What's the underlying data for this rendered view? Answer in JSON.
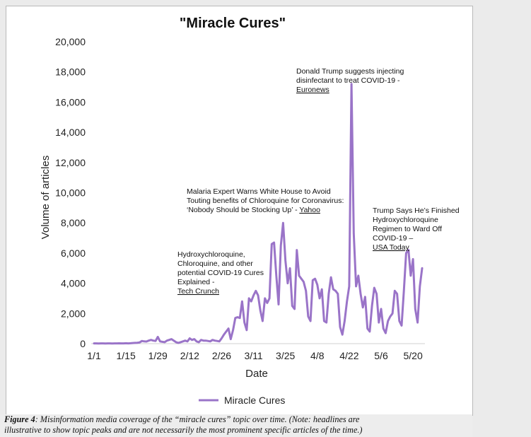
{
  "chart_data": {
    "type": "line",
    "title": "\"Miracle Cures\"",
    "xlabel": "Date",
    "ylabel": "Volume of articles",
    "ylim": [
      0,
      20000
    ],
    "yticks": [
      0,
      2000,
      4000,
      6000,
      8000,
      10000,
      12000,
      14000,
      16000,
      18000,
      20000
    ],
    "ytick_labels": [
      "0",
      "2,000",
      "4,000",
      "6,000",
      "8,000",
      "10,000",
      "12,000",
      "14,000",
      "16,000",
      "18,000",
      "20,000"
    ],
    "xticks": [
      {
        "day": 0,
        "label": "1/1"
      },
      {
        "day": 14,
        "label": "1/15"
      },
      {
        "day": 28,
        "label": "1/29"
      },
      {
        "day": 42,
        "label": "2/12"
      },
      {
        "day": 56,
        "label": "2/26"
      },
      {
        "day": 70,
        "label": "3/11"
      },
      {
        "day": 84,
        "label": "3/25"
      },
      {
        "day": 98,
        "label": "4/8"
      },
      {
        "day": 112,
        "label": "4/22"
      },
      {
        "day": 126,
        "label": "5/6"
      },
      {
        "day": 140,
        "label": "5/20"
      }
    ],
    "grid": false,
    "legend_position": "bottom",
    "color": "#9a74c8",
    "series": [
      {
        "name": "Miracle Cures",
        "x": [
          0,
          1,
          2,
          3,
          4,
          5,
          6,
          7,
          8,
          9,
          10,
          11,
          12,
          13,
          14,
          15,
          16,
          17,
          18,
          19,
          20,
          21,
          22,
          23,
          24,
          25,
          26,
          27,
          28,
          29,
          30,
          31,
          32,
          33,
          34,
          35,
          36,
          37,
          38,
          39,
          40,
          41,
          42,
          43,
          44,
          45,
          46,
          47,
          48,
          49,
          50,
          51,
          52,
          53,
          54,
          55,
          56,
          57,
          58,
          59,
          60,
          61,
          62,
          63,
          64,
          65,
          66,
          67,
          68,
          69,
          70,
          71,
          72,
          73,
          74,
          75,
          76,
          77,
          78,
          79,
          80,
          81,
          82,
          83,
          84,
          85,
          86,
          87,
          88,
          89,
          90,
          91,
          92,
          93,
          94,
          95,
          96,
          97,
          98,
          99,
          100,
          101,
          102,
          103,
          104,
          105,
          106,
          107,
          108,
          109,
          110,
          111,
          112,
          113,
          114,
          115,
          116,
          117,
          118,
          119,
          120,
          121,
          122,
          123,
          124,
          125,
          126,
          127,
          128,
          129,
          130,
          131,
          132,
          133,
          134,
          135,
          136,
          137,
          138,
          139,
          140,
          141,
          142,
          143,
          144
        ],
        "y": [
          20,
          20,
          15,
          20,
          20,
          15,
          20,
          20,
          15,
          20,
          20,
          25,
          20,
          20,
          30,
          20,
          30,
          40,
          50,
          60,
          80,
          180,
          150,
          140,
          200,
          250,
          200,
          180,
          450,
          150,
          120,
          100,
          200,
          250,
          300,
          200,
          100,
          50,
          100,
          150,
          200,
          150,
          350,
          250,
          300,
          150,
          100,
          250,
          200,
          200,
          180,
          150,
          250,
          200,
          180,
          150,
          350,
          600,
          800,
          1000,
          300,
          900,
          1700,
          1750,
          1700,
          2800,
          1400,
          900,
          3000,
          2800,
          3200,
          3500,
          3200,
          2200,
          1500,
          3000,
          2700,
          3000,
          6600,
          6700,
          4500,
          2600,
          6500,
          8000,
          5500,
          4000,
          5000,
          2500,
          2300,
          6200,
          4500,
          4300,
          4100,
          3500,
          1800,
          1500,
          4200,
          4300,
          3900,
          3000,
          3600,
          1500,
          1400,
          3300,
          4400,
          3600,
          3500,
          3300,
          1100,
          600,
          1500,
          2800,
          3800,
          17200,
          7300,
          3800,
          4500,
          3300,
          2400,
          3100,
          1000,
          800,
          2500,
          3700,
          3300,
          1400,
          2300,
          1000,
          700,
          1500,
          1800,
          2000,
          3500,
          3300,
          1500,
          1200,
          3500,
          6000,
          6200,
          4500,
          5600,
          2300,
          1400,
          3800,
          5000
        ]
      }
    ],
    "annotations": [
      {
        "lines": [
          "Donald Trump suggests injecting",
          "disinfectant to treat COVID-19 -"
        ],
        "source": "Euronews"
      },
      {
        "lines": [
          "Malaria Expert Warns White House to Avoid",
          "Touting benefits of Chloroquine for Coronavirus:",
          "‘Nobody Should be Stocking Up’ - "
        ],
        "source": "Yahoo"
      },
      {
        "lines": [
          "Trump Says He’s Finished",
          "Hydroxychloroquine",
          "Regimen to Ward Off",
          "COVID-19 – "
        ],
        "source": "USA Today"
      },
      {
        "lines": [
          "Hydroxychloroquine,",
          "Chloroquine, and other",
          "potential COVID-19 Cures",
          "Explained - "
        ],
        "source": "Tech Crunch"
      }
    ]
  },
  "caption": {
    "figure_label": "Figure 4",
    "line1": ": Misinformation media coverage of the “miracle cures” topic over time. (Note: headlines are",
    "line2": "illustrative to show topic peaks and are not necessarily the most prominent specific articles of the time.)"
  }
}
